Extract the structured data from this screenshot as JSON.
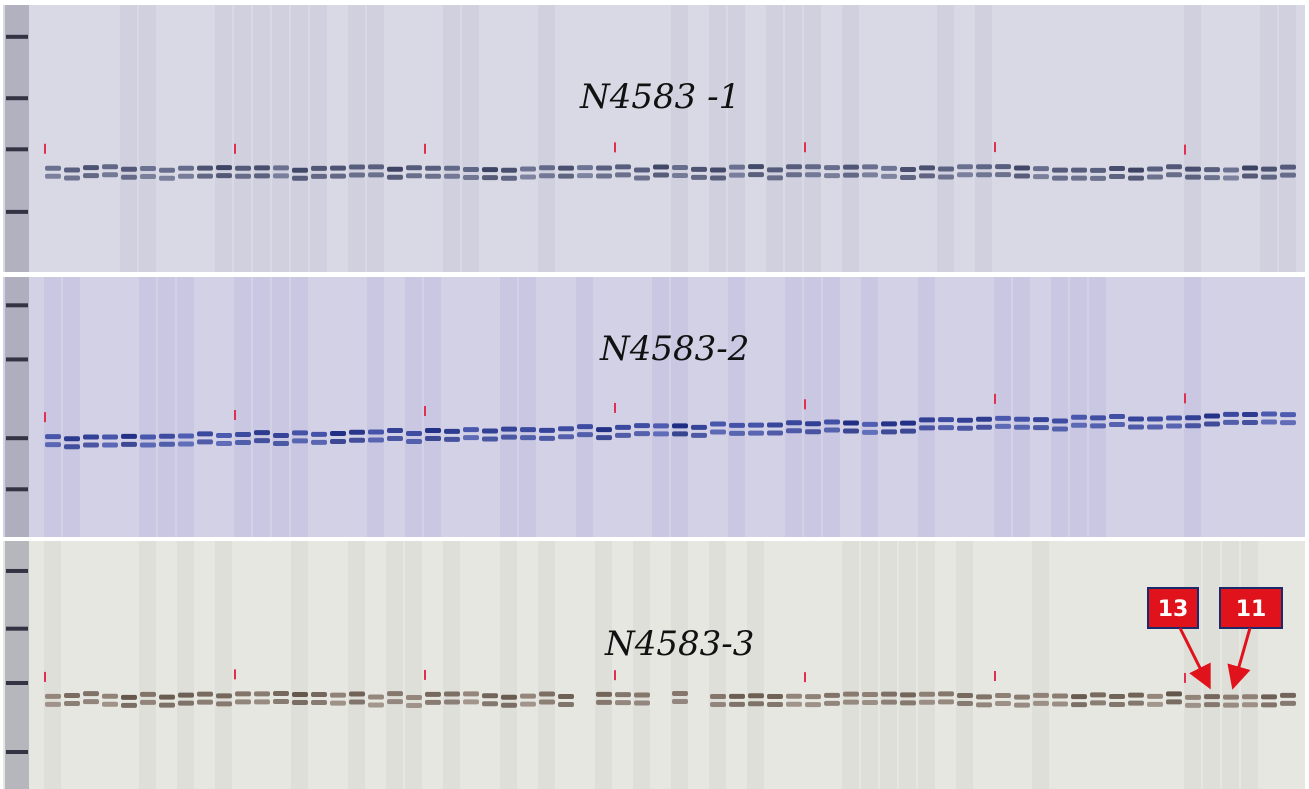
{
  "panels": [
    {
      "label": "N4583 -1"
    },
    {
      "label": "N4583-2"
    },
    {
      "label": "N4583-3"
    }
  ],
  "callouts": [
    {
      "label": "13"
    },
    {
      "label": "11"
    }
  ]
}
